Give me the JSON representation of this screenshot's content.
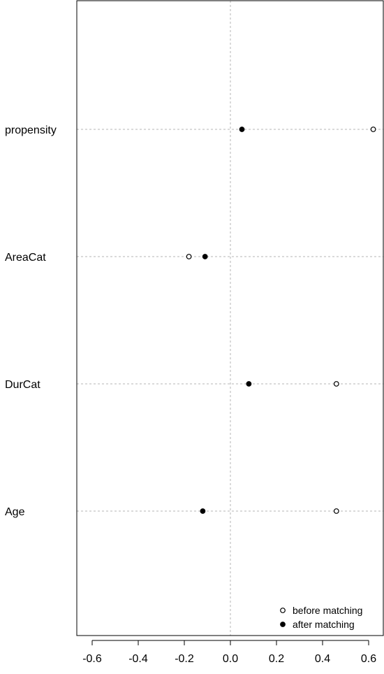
{
  "chart_data": {
    "type": "scatter",
    "title": "",
    "xlabel": "",
    "ylabel": "",
    "xlim": [
      -0.65,
      0.65
    ],
    "x_ticks": [
      -0.6,
      -0.4,
      -0.2,
      0.0,
      0.2,
      0.4,
      0.6
    ],
    "x_tick_labels": [
      "-0.6",
      "-0.4",
      "-0.2",
      "0.0",
      "0.2",
      "0.4",
      "0.6"
    ],
    "categories": [
      "propensity",
      "AreaCat",
      "DurCat",
      "Age"
    ],
    "grid": "dotted reference lines at each category and at x = 0",
    "legend_position": "bottom-right",
    "series": [
      {
        "name": "before matching",
        "marker": "open-circle",
        "values": [
          0.62,
          -0.18,
          0.46,
          0.46
        ]
      },
      {
        "name": "after matching",
        "marker": "filled-circle",
        "values": [
          0.05,
          -0.11,
          0.08,
          -0.12
        ]
      }
    ]
  }
}
